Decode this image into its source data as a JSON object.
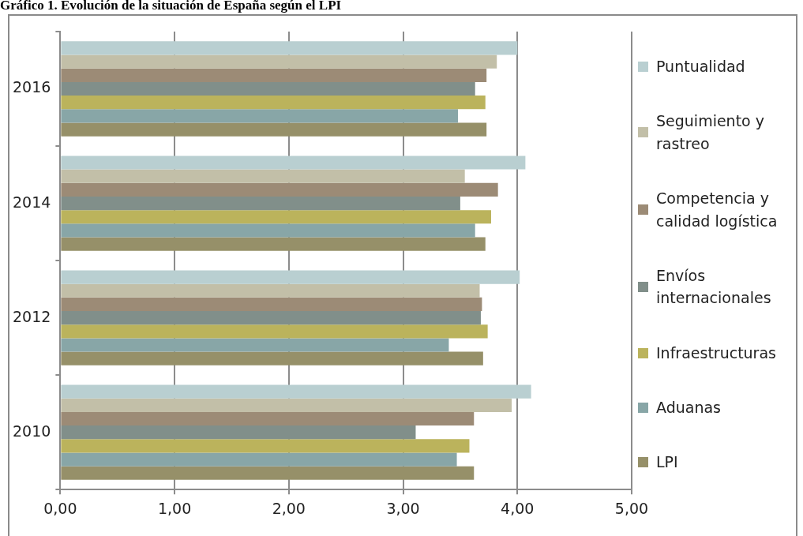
{
  "chart_data": {
    "type": "bar",
    "orientation": "horizontal",
    "title": "Gráfico 1. Evolución de la situación de España según el LPI",
    "categories": [
      "2016",
      "2014",
      "2012",
      "2010"
    ],
    "series": [
      {
        "name": "Puntualidad",
        "color": "#b9cfd1",
        "values": [
          4.0,
          4.07,
          4.02,
          4.12
        ]
      },
      {
        "name": "Seguimiento y rastreo",
        "color": "#c2bfa8",
        "values": [
          3.82,
          3.54,
          3.67,
          3.95
        ]
      },
      {
        "name": "Competencia y calidad logística",
        "color": "#9c8b76",
        "values": [
          3.73,
          3.83,
          3.69,
          3.62
        ]
      },
      {
        "name": "Envíos internacionales",
        "color": "#818f8a",
        "values": [
          3.63,
          3.5,
          3.68,
          3.11
        ]
      },
      {
        "name": "Infraestructuras",
        "color": "#bbb35c",
        "values": [
          3.72,
          3.77,
          3.74,
          3.58
        ]
      },
      {
        "name": "Aduanas",
        "color": "#88a6a7",
        "values": [
          3.48,
          3.63,
          3.4,
          3.47
        ]
      },
      {
        "name": "LPI",
        "color": "#969069",
        "values": [
          3.73,
          3.72,
          3.7,
          3.62
        ]
      }
    ],
    "xlim": [
      0,
      5
    ],
    "xticks": [
      {
        "value": 0,
        "label": "0,00"
      },
      {
        "value": 1,
        "label": "1,00"
      },
      {
        "value": 2,
        "label": "2,00"
      },
      {
        "value": 3,
        "label": "3,00"
      },
      {
        "value": 4,
        "label": "4,00"
      },
      {
        "value": 5,
        "label": "5,00"
      }
    ],
    "grid": "x",
    "legend": "right"
  }
}
